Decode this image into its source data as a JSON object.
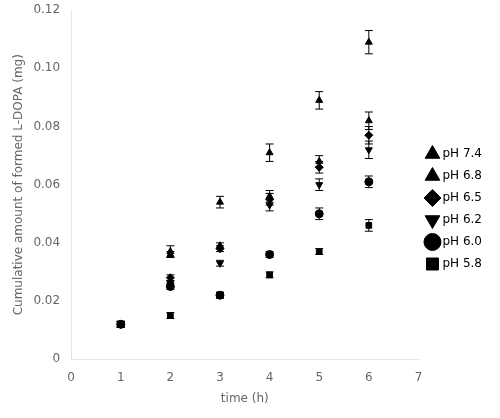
{
  "chart_data": {
    "type": "scatter",
    "xlabel": "time (h)",
    "ylabel": "Cumulative amount of formed L-DOPA (mg)",
    "xlim": [
      0,
      7
    ],
    "ylim": [
      0,
      0.12
    ],
    "xticks": [
      0,
      1,
      2,
      3,
      4,
      5,
      6,
      7
    ],
    "yticks": [
      0,
      0.02,
      0.04,
      0.06,
      0.08,
      {
        "value": 0.1,
        "label": "0.10"
      },
      0.12
    ],
    "grid": false,
    "legend": "right",
    "series": [
      {
        "name": "pH 7.4",
        "marker": "triangle-up",
        "color": "#000000",
        "x": [
          1,
          2,
          3,
          4,
          5,
          6
        ],
        "values": [
          0.012,
          0.037,
          0.054,
          0.071,
          0.089,
          0.109
        ],
        "yerr": [
          0.001,
          0.002,
          0.002,
          0.003,
          0.003,
          0.004
        ]
      },
      {
        "name": "pH 6.8",
        "marker": "triangle-up",
        "color": "#000000",
        "x": [
          2,
          3,
          4,
          5,
          6
        ],
        "values": [
          0.036,
          0.039,
          0.056,
          0.068,
          0.082
        ],
        "yerr": [
          0.001,
          0.001,
          0.002,
          0.002,
          0.003
        ]
      },
      {
        "name": "pH 6.5",
        "marker": "diamond",
        "color": "#000000",
        "x": [
          1,
          2,
          3,
          4,
          5,
          6
        ],
        "values": [
          0.012,
          0.028,
          0.038,
          0.055,
          0.066,
          0.077
        ],
        "yerr": [
          0.001,
          0.001,
          0.001,
          0.002,
          0.002,
          0.003
        ]
      },
      {
        "name": "pH 6.2",
        "marker": "triangle-down",
        "color": "#000000",
        "x": [
          1,
          2,
          3,
          4,
          5,
          6
        ],
        "values": [
          0.012,
          0.026,
          0.033,
          0.053,
          0.06,
          0.072
        ],
        "yerr": [
          0.001,
          0.001,
          0.001,
          0.002,
          0.002,
          0.003
        ]
      },
      {
        "name": "pH 6.0",
        "marker": "circle",
        "color": "#000000",
        "x": [
          1,
          2,
          3,
          4,
          5,
          6
        ],
        "values": [
          0.012,
          0.025,
          0.022,
          0.036,
          0.05,
          0.061
        ],
        "yerr": [
          0.001,
          0.001,
          0.001,
          0.001,
          0.002,
          0.002
        ]
      },
      {
        "name": "pH 5.8",
        "marker": "square",
        "color": "#000000",
        "x": [
          1,
          2,
          3,
          4,
          5,
          6
        ],
        "values": [
          0.012,
          0.015,
          0.022,
          0.029,
          0.037,
          0.046
        ],
        "yerr": [
          0.001,
          0.001,
          0.001,
          0.001,
          0.001,
          0.002
        ]
      }
    ]
  }
}
